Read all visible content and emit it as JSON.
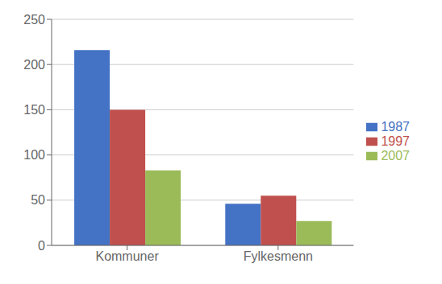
{
  "chart_data": {
    "type": "bar",
    "categories": [
      "Kommuner",
      "Fylkesmenn"
    ],
    "series": [
      {
        "name": "1987",
        "color": "#4472C4",
        "values": [
          216,
          46
        ]
      },
      {
        "name": "1997",
        "color": "#C0504D",
        "values": [
          150,
          55
        ]
      },
      {
        "name": "2007",
        "color": "#9BBB59",
        "values": [
          83,
          27
        ]
      }
    ],
    "ylim": [
      0,
      250
    ],
    "yticks": [
      0,
      50,
      100,
      150,
      200,
      250
    ],
    "grid": true,
    "legend": "right"
  }
}
